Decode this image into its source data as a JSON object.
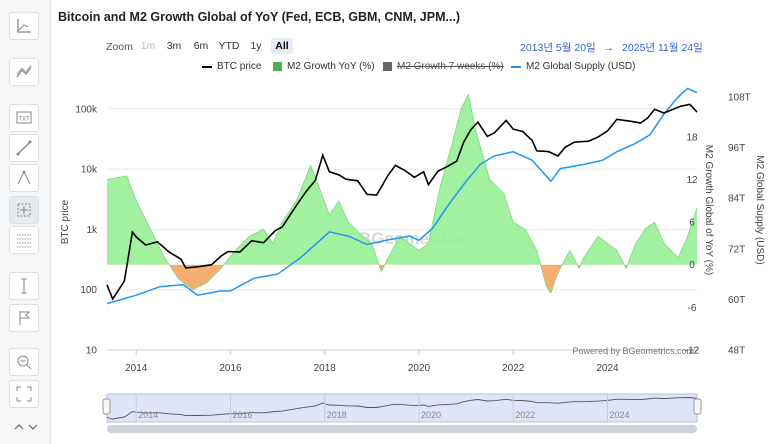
{
  "title": "Bitcoin and M2 Growth Global of YoY (Fed, ECB, GBM, CNM, JPM...)",
  "zoom": {
    "label": "Zoom",
    "buttons": [
      {
        "label": "1m",
        "state": "disabled"
      },
      {
        "label": "3m",
        "state": "normal"
      },
      {
        "label": "6m",
        "state": "normal"
      },
      {
        "label": "YTD",
        "state": "normal"
      },
      {
        "label": "1y",
        "state": "normal"
      },
      {
        "label": "All",
        "state": "selected"
      }
    ]
  },
  "date_range": {
    "from": "2013년 5월 20일",
    "arrow": "→",
    "to": "2025년 11월 24일"
  },
  "toolbar": [
    "trend-line-icon",
    "indicators-icon",
    "text-annotation-icon",
    "line-draw-icon",
    "fibonacci-icon",
    "crosshair-selection-icon",
    "grid-lines-icon",
    "vertical-measure-icon",
    "flag-icon",
    "zoom-reset-icon",
    "fullscreen-icon",
    "collapse-arrows-icon"
  ],
  "watermark": "BGeometrics",
  "credits": "Powered by BGeometrics.com",
  "chart_data": {
    "type": "line",
    "x_label": "",
    "x_ticks": [
      "2014",
      "2016",
      "2018",
      "2020",
      "2022",
      "2024"
    ],
    "x_range": [
      2013.38,
      2025.9
    ],
    "axes": {
      "left": {
        "title": "BTC price",
        "scale": "log",
        "range": [
          10,
          300000
        ],
        "ticks": [
          "100k",
          "10k",
          "1k",
          "100",
          "10"
        ]
      },
      "right_m2_growth": {
        "title": "M2 Growth Global of YoY (%)",
        "range": [
          -12,
          26
        ],
        "ticks": [
          "18",
          "12",
          "6",
          "0",
          "-6",
          "-12"
        ]
      },
      "right_m2_supply": {
        "title": "M2 Global Supply (USD)",
        "range": [
          48,
          112
        ],
        "ticks": [
          "108T",
          "96T",
          "84T",
          "72T",
          "60T",
          "48T"
        ]
      }
    },
    "series": [
      {
        "name": "BTC price",
        "color": "#000000",
        "axis": "left",
        "points": [
          [
            2013.38,
            120
          ],
          [
            2013.5,
            70
          ],
          [
            2013.75,
            140
          ],
          [
            2013.92,
            900
          ],
          [
            2014.0,
            750
          ],
          [
            2014.2,
            550
          ],
          [
            2014.45,
            620
          ],
          [
            2014.7,
            420
          ],
          [
            2014.95,
            320
          ],
          [
            2015.05,
            230
          ],
          [
            2015.3,
            240
          ],
          [
            2015.6,
            260
          ],
          [
            2015.8,
            360
          ],
          [
            2015.95,
            430
          ],
          [
            2016.2,
            420
          ],
          [
            2016.45,
            650
          ],
          [
            2016.7,
            600
          ],
          [
            2016.95,
            950
          ],
          [
            2017.1,
            1100
          ],
          [
            2017.4,
            2500
          ],
          [
            2017.6,
            4200
          ],
          [
            2017.8,
            6500
          ],
          [
            2017.96,
            17000
          ],
          [
            2018.1,
            9000
          ],
          [
            2018.3,
            8000
          ],
          [
            2018.45,
            6800
          ],
          [
            2018.7,
            6400
          ],
          [
            2018.9,
            3800
          ],
          [
            2019.1,
            3700
          ],
          [
            2019.35,
            8000
          ],
          [
            2019.5,
            11500
          ],
          [
            2019.7,
            9500
          ],
          [
            2019.9,
            7300
          ],
          [
            2020.1,
            9000
          ],
          [
            2020.2,
            5500
          ],
          [
            2020.4,
            9200
          ],
          [
            2020.6,
            11000
          ],
          [
            2020.8,
            13500
          ],
          [
            2020.95,
            28000
          ],
          [
            2021.1,
            45000
          ],
          [
            2021.25,
            60000
          ],
          [
            2021.45,
            35000
          ],
          [
            2021.6,
            40000
          ],
          [
            2021.85,
            64000
          ],
          [
            2022.0,
            46000
          ],
          [
            2022.2,
            42000
          ],
          [
            2022.4,
            30000
          ],
          [
            2022.5,
            20000
          ],
          [
            2022.75,
            19500
          ],
          [
            2022.95,
            16500
          ],
          [
            2023.1,
            23000
          ],
          [
            2023.3,
            28000
          ],
          [
            2023.6,
            29000
          ],
          [
            2023.8,
            34000
          ],
          [
            2024.0,
            43000
          ],
          [
            2024.2,
            67000
          ],
          [
            2024.5,
            62000
          ],
          [
            2024.7,
            58000
          ],
          [
            2024.85,
            70000
          ],
          [
            2025.0,
            98000
          ],
          [
            2025.2,
            85000
          ],
          [
            2025.35,
            95000
          ],
          [
            2025.55,
            110000
          ],
          [
            2025.75,
            118000
          ],
          [
            2025.9,
            88000
          ]
        ]
      },
      {
        "name": "M2 Growth YoY (%)",
        "color": "#4caf50",
        "axis": "right_m2_growth",
        "points": [
          [
            2013.38,
            12
          ],
          [
            2013.8,
            12.5
          ],
          [
            2014.0,
            9
          ],
          [
            2014.3,
            5
          ],
          [
            2014.6,
            1
          ],
          [
            2014.9,
            -2
          ],
          [
            2015.2,
            -3.5
          ],
          [
            2015.5,
            -2.5
          ],
          [
            2015.8,
            -0.5
          ],
          [
            2016.1,
            2
          ],
          [
            2016.4,
            4
          ],
          [
            2016.7,
            5
          ],
          [
            2016.9,
            3
          ],
          [
            2017.1,
            6
          ],
          [
            2017.4,
            9
          ],
          [
            2017.7,
            14
          ],
          [
            2017.85,
            11.5
          ],
          [
            2018.1,
            7
          ],
          [
            2018.3,
            9
          ],
          [
            2018.5,
            6
          ],
          [
            2018.8,
            4
          ],
          [
            2019.0,
            3
          ],
          [
            2019.2,
            -1
          ],
          [
            2019.35,
            1
          ],
          [
            2019.6,
            4
          ],
          [
            2019.8,
            3
          ],
          [
            2020.0,
            2
          ],
          [
            2020.2,
            3
          ],
          [
            2020.45,
            11
          ],
          [
            2020.7,
            17
          ],
          [
            2020.9,
            22
          ],
          [
            2021.05,
            24
          ],
          [
            2021.2,
            19
          ],
          [
            2021.5,
            12
          ],
          [
            2021.8,
            10
          ],
          [
            2022.0,
            6
          ],
          [
            2022.25,
            5
          ],
          [
            2022.5,
            2
          ],
          [
            2022.7,
            -3
          ],
          [
            2022.8,
            -4
          ],
          [
            2022.9,
            -2
          ],
          [
            2023.0,
            -0.5
          ],
          [
            2023.2,
            2
          ],
          [
            2023.4,
            -0.5
          ],
          [
            2023.5,
            1
          ],
          [
            2023.8,
            4
          ],
          [
            2024.0,
            3
          ],
          [
            2024.2,
            2
          ],
          [
            2024.4,
            -0.5
          ],
          [
            2024.6,
            3
          ],
          [
            2024.8,
            5
          ],
          [
            2025.0,
            6
          ],
          [
            2025.2,
            3
          ],
          [
            2025.5,
            1
          ],
          [
            2025.7,
            4
          ],
          [
            2025.9,
            8
          ]
        ]
      },
      {
        "name": "M2 Growth 7 weeks (%)",
        "color": "#666666",
        "axis": "right_m2_growth",
        "hidden": true,
        "points": []
      },
      {
        "name": "M2 Global Supply (USD)",
        "color": "#2196f3",
        "axis": "right_m2_supply",
        "points": [
          [
            2013.38,
            59
          ],
          [
            2014.0,
            61
          ],
          [
            2014.5,
            63
          ],
          [
            2015.0,
            63.5
          ],
          [
            2015.3,
            61
          ],
          [
            2015.8,
            62
          ],
          [
            2016.0,
            62
          ],
          [
            2016.5,
            65
          ],
          [
            2017.0,
            66
          ],
          [
            2017.5,
            70
          ],
          [
            2017.9,
            74
          ],
          [
            2018.1,
            76
          ],
          [
            2018.5,
            75
          ],
          [
            2018.9,
            73
          ],
          [
            2019.3,
            74
          ],
          [
            2019.8,
            75
          ],
          [
            2020.0,
            74
          ],
          [
            2020.3,
            77
          ],
          [
            2020.6,
            82
          ],
          [
            2021.0,
            88
          ],
          [
            2021.3,
            92
          ],
          [
            2021.6,
            94
          ],
          [
            2022.0,
            95
          ],
          [
            2022.4,
            93
          ],
          [
            2022.8,
            88
          ],
          [
            2023.0,
            91
          ],
          [
            2023.5,
            92
          ],
          [
            2023.9,
            93
          ],
          [
            2024.2,
            95
          ],
          [
            2024.6,
            97
          ],
          [
            2024.9,
            99
          ],
          [
            2025.2,
            104
          ],
          [
            2025.5,
            108
          ],
          [
            2025.7,
            110
          ],
          [
            2025.9,
            109
          ]
        ]
      }
    ],
    "navigator": {
      "x_ticks": [
        "2014",
        "2016",
        "2018",
        "2020",
        "2022",
        "2024"
      ]
    }
  }
}
